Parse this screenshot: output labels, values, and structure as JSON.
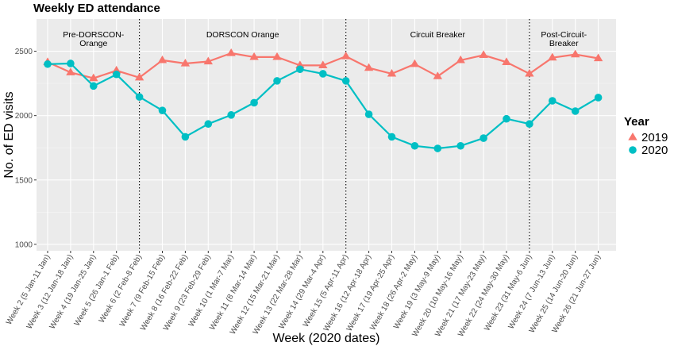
{
  "chart_data": {
    "type": "line",
    "title": "Weekly ED attendance",
    "xlabel": "Week (2020 dates)",
    "ylabel": "No. of ED visits",
    "ylim": [
      950,
      2750
    ],
    "yticks": [
      1000,
      1500,
      2000,
      2500
    ],
    "grid": true,
    "legend": {
      "title": "Year",
      "placement": "right"
    },
    "categories": [
      "Week 2 (5 Jan-11 Jan)",
      "Week 3 (12 Jan-18 Jan)",
      "Week 4 (19 Jan-25 Jan)",
      "Week 5 (26 Jan-1 Feb)",
      "Week 6 (2 Feb-8 Feb)",
      "Week 7 (9 Feb-15 Feb)",
      "Week 8 (16 Feb-22 Feb)",
      "Week 9 (23 Feb-29 Feb)",
      "Week 10 (1 Mar-7 Mar)",
      "Week 11 (8 Mar-14 Mar)",
      "Week 12 (15 Mar-21 Mar)",
      "Week 13 (22 Mar-28 Mar)",
      "Week 14 (29 Mar-4 Apr)",
      "Week 15 (5 Apr-11 Apr)",
      "Week 16 (12 Apr-18 Apr)",
      "Week 17 (19 Apr-25 Apr)",
      "Week 18 (26 Apr-2 May)",
      "Week 19 (3 May-9 May)",
      "Week 20 (10 May-16 May)",
      "Week 21 (17 May-23 May)",
      "Week 22 (24 May-30 May)",
      "Week 23 (31 May-6 Jun)",
      "Week 24 (7 Jun-13 Jun)",
      "Week 25 (14 Jun-20 Jun)",
      "Week 26 (21 Jun-27 Jun)"
    ],
    "series": [
      {
        "name": "2019",
        "color": "#F8766D",
        "marker": "triangle",
        "values": [
          2415,
          2335,
          2290,
          2350,
          2295,
          2430,
          2405,
          2420,
          2485,
          2455,
          2455,
          2390,
          2390,
          2460,
          2370,
          2325,
          2400,
          2305,
          2430,
          2470,
          2415,
          2325,
          2450,
          2475,
          2445
        ]
      },
      {
        "name": "2020",
        "color": "#00BFC4",
        "marker": "circle",
        "values": [
          2400,
          2405,
          2230,
          2320,
          2145,
          2040,
          1835,
          1935,
          2005,
          2100,
          2270,
          2360,
          2325,
          2270,
          2010,
          1835,
          1765,
          1745,
          1765,
          1825,
          1975,
          1935,
          2115,
          2035,
          2140
        ]
      }
    ],
    "phases": [
      {
        "label_lines": [
          "Pre-DORSCON-",
          "Orange"
        ],
        "start_index": 0,
        "end_index": 4
      },
      {
        "label_lines": [
          "DORSCON Orange"
        ],
        "start_index": 4,
        "end_index": 13
      },
      {
        "label_lines": [
          "Circuit Breaker"
        ],
        "start_index": 13,
        "end_index": 21
      },
      {
        "label_lines": [
          "Post-Circuit-",
          "Breaker"
        ],
        "start_index": 21,
        "end_index": 24
      }
    ],
    "dividers_at_index": [
      4,
      13,
      21
    ]
  }
}
